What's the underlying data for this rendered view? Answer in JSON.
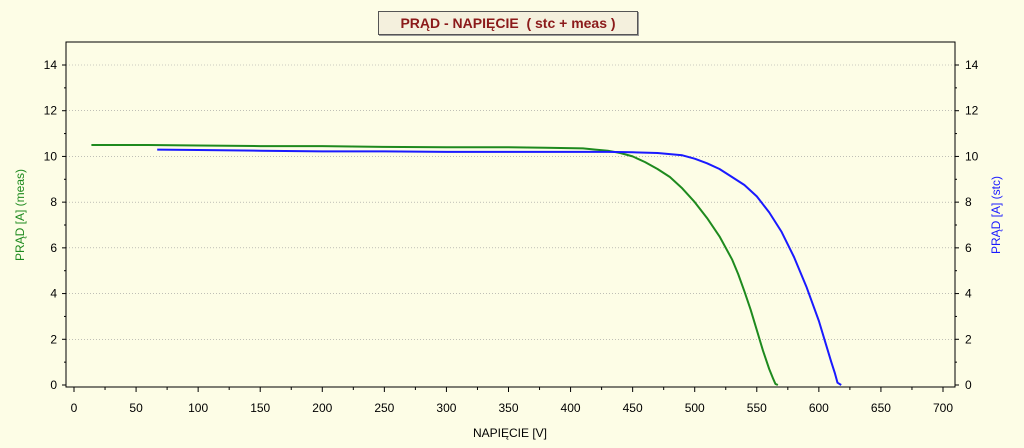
{
  "chart_data": {
    "type": "line",
    "title": "PRĄD - NAPIĘCIE  ( stc + meas )",
    "xlabel": "NAPIĘCIE [V]",
    "ylabel_left": "PRĄD [A]  (meas)",
    "ylabel_right": "PRĄD [A]  (stc)",
    "xlim": [
      0,
      700
    ],
    "ylim": [
      0,
      15
    ],
    "xticks": [
      "0",
      "50",
      "100",
      "150",
      "200",
      "250",
      "300",
      "350",
      "400",
      "450",
      "500",
      "550",
      "600",
      "650",
      "700"
    ],
    "yticks": [
      "0",
      "2",
      "4",
      "6",
      "8",
      "10",
      "12",
      "14"
    ],
    "grid": true,
    "colors": {
      "meas": "#1e8a1e",
      "stc": "#1a1aff",
      "title": "#8b1a1a"
    },
    "series": [
      {
        "axis": "left",
        "x": [
          14,
          60,
          100,
          150,
          200,
          240,
          300,
          350,
          380,
          410,
          420,
          430,
          440,
          450,
          460,
          470,
          480,
          490,
          500,
          510,
          520,
          530,
          535,
          540,
          545,
          550,
          555,
          560,
          563,
          565,
          567
        ],
        "y": [
          10.5,
          10.5,
          10.48,
          10.45,
          10.45,
          10.42,
          10.4,
          10.4,
          10.38,
          10.35,
          10.3,
          10.25,
          10.15,
          10.0,
          9.75,
          9.45,
          9.1,
          8.6,
          8.0,
          7.3,
          6.5,
          5.5,
          4.85,
          4.1,
          3.3,
          2.4,
          1.5,
          0.7,
          0.3,
          0.05,
          0.0
        ]
      },
      {
        "axis": "right",
        "x": [
          67,
          100,
          150,
          200,
          250,
          300,
          350,
          400,
          430,
          450,
          470,
          480,
          490,
          500,
          510,
          520,
          530,
          540,
          550,
          560,
          570,
          580,
          590,
          600,
          605,
          610,
          613,
          615,
          618
        ],
        "y": [
          10.3,
          10.28,
          10.25,
          10.22,
          10.22,
          10.2,
          10.2,
          10.2,
          10.2,
          10.18,
          10.15,
          10.1,
          10.05,
          9.9,
          9.7,
          9.45,
          9.1,
          8.75,
          8.25,
          7.55,
          6.7,
          5.6,
          4.3,
          2.8,
          1.9,
          1.0,
          0.5,
          0.1,
          0.0
        ]
      }
    ]
  }
}
